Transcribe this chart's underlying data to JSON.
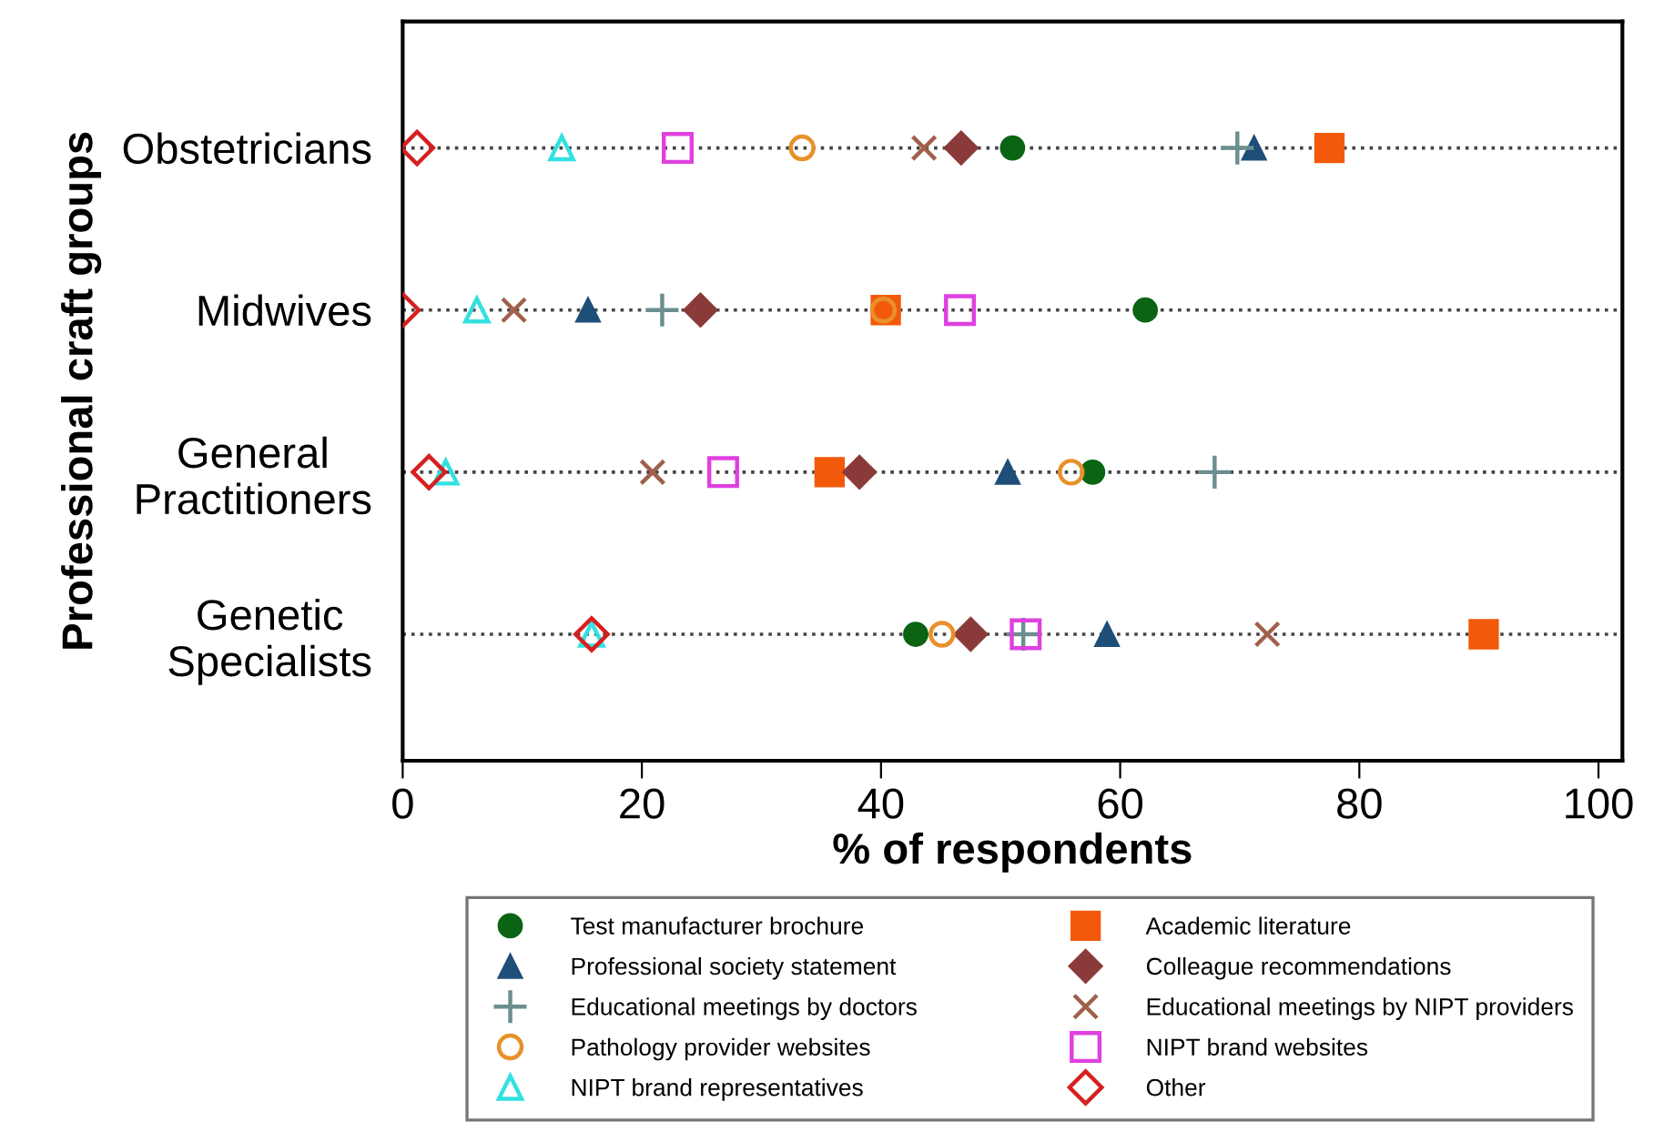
{
  "chart_data": {
    "type": "scatter",
    "xlabel": "% of respondents",
    "ylabel": "Professional craft groups",
    "categories": [
      "Obstetricians",
      "Midwives",
      "General\nPractitioners",
      "Genetic\nSpecialists"
    ],
    "orientation": "horizontal",
    "xlim": [
      0,
      102
    ],
    "xticks": [
      0,
      20,
      40,
      60,
      80,
      100
    ],
    "grid": "y",
    "line_style": "dotted",
    "legend": "bottom",
    "series": [
      {
        "name": "Test manufacturer brochure",
        "color": "#0a6414",
        "marker": "circle",
        "values": [
          51,
          62.1,
          57.7,
          42.9
        ]
      },
      {
        "name": "Academic literature",
        "color": "#f25a0a",
        "marker": "square",
        "values": [
          77.5,
          40.4,
          35.7,
          90.4
        ]
      },
      {
        "name": "Professional society statement",
        "color": "#1f4e79",
        "marker": "triangle",
        "values": [
          71.2,
          15.5,
          50.6,
          58.9
        ]
      },
      {
        "name": "Colleague recommendations",
        "color": "#8b3a3a",
        "marker": "diamond",
        "values": [
          46.7,
          24.9,
          38.2,
          47.5
        ]
      },
      {
        "name": "Educational meetings by doctors",
        "color": "#6b8e8e",
        "marker": "plus",
        "values": [
          69.8,
          21.7,
          67.9,
          51.9
        ]
      },
      {
        "name": "Educational meetings by NIPT providers",
        "color": "#a0604a",
        "marker": "cross",
        "values": [
          43.6,
          9.3,
          20.9,
          72.3
        ]
      },
      {
        "name": "Pathology provider websites",
        "color": "#e8902a",
        "marker": "circle-open",
        "values": [
          33.4,
          40.2,
          55.9,
          45.1
        ]
      },
      {
        "name": "NIPT brand websites",
        "color": "#e040e0",
        "marker": "square-open",
        "values": [
          23,
          46.6,
          26.8,
          52.1
        ]
      },
      {
        "name": "NIPT brand representatives",
        "color": "#33e0e0",
        "marker": "triangle-open",
        "values": [
          13.3,
          6.2,
          3.6,
          15.8
        ]
      },
      {
        "name": "Other",
        "color": "#d62020",
        "marker": "diamond-open",
        "values": [
          1.2,
          0,
          2.2,
          15.8
        ]
      }
    ]
  }
}
